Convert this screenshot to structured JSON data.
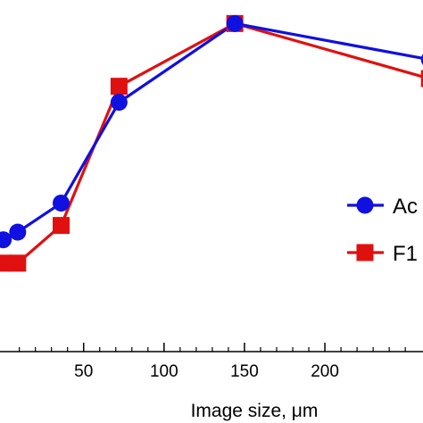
{
  "chart_data": {
    "type": "line",
    "xlabel": "Image size, μm",
    "ylabel": "",
    "xlim": [
      -2,
      261
    ],
    "ylim": [
      0,
      1
    ],
    "x_ticks": [
      50,
      100,
      150,
      200
    ],
    "x_tick_labels": [
      "50",
      "100",
      "150",
      "200"
    ],
    "grid": false,
    "legend_position": "right",
    "series": [
      {
        "name": "Ac",
        "color": "#1010e0",
        "marker": "circle",
        "x": [
          0,
          9,
          36,
          72,
          144,
          265
        ],
        "y": [
          0.335,
          0.358,
          0.445,
          0.747,
          0.983,
          0.875
        ]
      },
      {
        "name": "F1",
        "color": "#e01010",
        "marker": "square",
        "x": [
          0,
          9,
          36,
          72,
          144,
          265
        ],
        "y": [
          0.265,
          0.265,
          0.378,
          0.795,
          0.983,
          0.818
        ]
      }
    ]
  }
}
